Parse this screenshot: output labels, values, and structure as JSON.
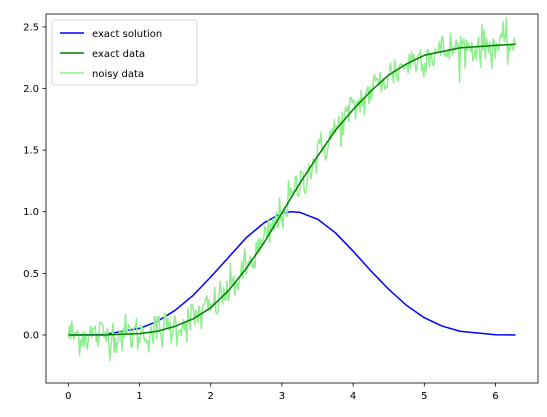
{
  "chart_data": {
    "type": "line",
    "title": "",
    "xlabel": "",
    "ylabel": "",
    "xlim": [
      -0.314,
      6.597
    ],
    "ylim": [
      -0.39,
      2.605
    ],
    "xticks": [
      0,
      1,
      2,
      3,
      4,
      5,
      6
    ],
    "yticks": [
      0.0,
      0.5,
      1.0,
      1.5,
      2.0,
      2.5
    ],
    "xtick_labels": [
      "0",
      "1",
      "2",
      "3",
      "4",
      "5",
      "6"
    ],
    "ytick_labels": [
      "0.0",
      "0.5",
      "1.0",
      "1.5",
      "2.0",
      "2.5"
    ],
    "grid": false,
    "legend_position": "top-left",
    "series": [
      {
        "name": "exact solution",
        "color": "#0000ff",
        "x": [
          0.0,
          0.5,
          1.0,
          1.25,
          1.5,
          1.75,
          2.0,
          2.25,
          2.5,
          2.75,
          3.0,
          3.14,
          3.25,
          3.5,
          3.75,
          4.0,
          4.25,
          4.5,
          4.75,
          5.0,
          5.25,
          5.5,
          6.0,
          6.28
        ],
        "y": [
          0.0,
          0.004,
          0.053,
          0.11,
          0.2,
          0.32,
          0.47,
          0.63,
          0.79,
          0.91,
          0.99,
          1.0,
          0.995,
          0.94,
          0.83,
          0.68,
          0.52,
          0.37,
          0.24,
          0.14,
          0.072,
          0.03,
          0.002,
          0.0
        ]
      },
      {
        "name": "exact data",
        "color": "#008000",
        "x": [
          0.0,
          0.5,
          1.0,
          1.25,
          1.5,
          1.75,
          2.0,
          2.25,
          2.5,
          2.75,
          3.0,
          3.25,
          3.5,
          3.75,
          4.0,
          4.25,
          4.5,
          4.75,
          5.0,
          5.5,
          6.0,
          6.28
        ],
        "y": [
          0.0,
          0.0,
          0.011,
          0.03,
          0.07,
          0.13,
          0.22,
          0.36,
          0.54,
          0.75,
          0.99,
          1.23,
          1.45,
          1.66,
          1.83,
          1.98,
          2.11,
          2.2,
          2.27,
          2.33,
          2.35,
          2.36
        ]
      },
      {
        "name": "noisy data",
        "color": "#90ee90",
        "x": [],
        "y": [],
        "noise_amplitude": 0.08
      }
    ]
  }
}
